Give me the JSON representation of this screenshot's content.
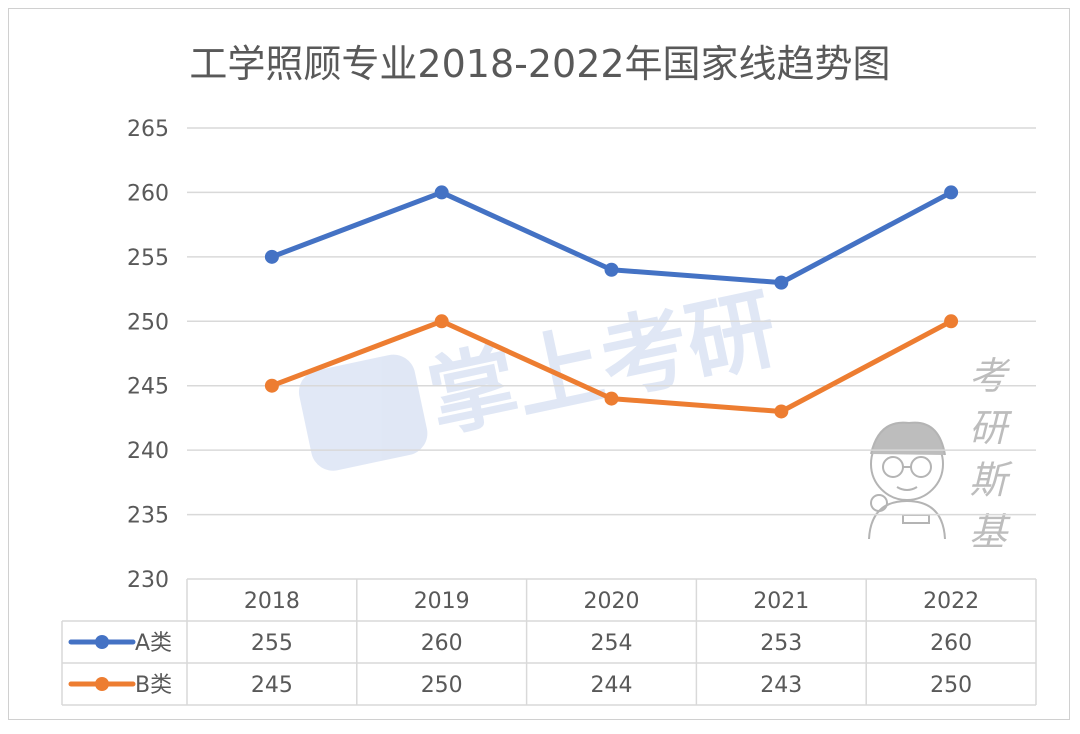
{
  "chart_data": {
    "type": "line",
    "title": "工学照顾专业2018-2022年国家线趋势图",
    "categories": [
      "2018",
      "2019",
      "2020",
      "2021",
      "2022"
    ],
    "series": [
      {
        "name": "A类",
        "values": [
          255,
          260,
          254,
          253,
          260
        ],
        "color": "#4472c4"
      },
      {
        "name": "B类",
        "values": [
          245,
          250,
          244,
          243,
          250
        ],
        "color": "#ed7d31"
      }
    ],
    "ylim": [
      230,
      265
    ],
    "yticks": [
      "265",
      "260",
      "255",
      "250",
      "245",
      "240",
      "235",
      "230"
    ],
    "grid": true,
    "legend": "data-table"
  },
  "watermarks": {
    "center_logo": "掌上考研",
    "side_chars": [
      "考",
      "研",
      "斯",
      "基"
    ]
  }
}
